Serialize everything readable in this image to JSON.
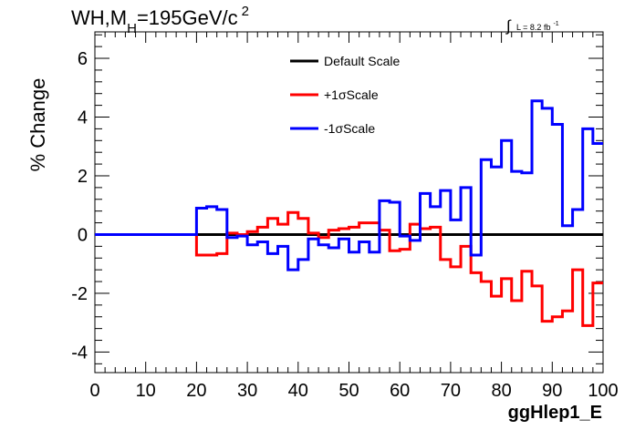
{
  "chart_data": {
    "type": "line",
    "title": {
      "main": "WH,M",
      "subscript": "H",
      "rest": "=195GeV/c",
      "superscript": "2"
    },
    "luminosity": {
      "integral_symbol": "∫",
      "label": "L = 8.2 fb",
      "exponent": "-1"
    },
    "xlabel": "ggHlep1_E",
    "ylabel": "% Change",
    "xlim": [
      0,
      100
    ],
    "ylim": [
      -4.7,
      6.9
    ],
    "x_ticks": [
      0,
      10,
      20,
      30,
      40,
      50,
      60,
      70,
      80,
      90,
      100
    ],
    "y_ticks": [
      -4,
      -2,
      0,
      2,
      4,
      6
    ],
    "legend": {
      "position": "top-center",
      "entries": [
        {
          "label": "Default Scale",
          "color": "#000000"
        },
        {
          "label": "+1σScale",
          "color": "#ff0000"
        },
        {
          "label": "-1σScale",
          "color": "#0000ff"
        }
      ]
    },
    "bin_edges": [
      0,
      2,
      4,
      6,
      8,
      10,
      12,
      14,
      16,
      18,
      20,
      22,
      24,
      26,
      28,
      30,
      32,
      34,
      36,
      38,
      40,
      42,
      44,
      46,
      48,
      50,
      52,
      54,
      56,
      58,
      60,
      62,
      64,
      66,
      68,
      70,
      72,
      74,
      76,
      78,
      80,
      82,
      84,
      86,
      88,
      90,
      92,
      94,
      96,
      98,
      100
    ],
    "series": [
      {
        "name": "Default Scale",
        "color": "#000000",
        "values": [
          0,
          0,
          0,
          0,
          0,
          0,
          0,
          0,
          0,
          0,
          0,
          0,
          0,
          0,
          0,
          0,
          0,
          0,
          0,
          0,
          0,
          0,
          0,
          0,
          0,
          0,
          0,
          0,
          0,
          0,
          0,
          0,
          0,
          0,
          0,
          0,
          0,
          0,
          0,
          0,
          0,
          0,
          0,
          0,
          0,
          0,
          0,
          0,
          0,
          0
        ]
      },
      {
        "name": "+1σScale",
        "color": "#ff0000",
        "values": [
          0,
          0,
          0,
          0,
          0,
          0,
          0,
          0,
          0,
          0,
          -0.7,
          -0.7,
          -0.65,
          0.05,
          0,
          0.1,
          0.25,
          0.55,
          0.35,
          0.75,
          0.55,
          0.05,
          -0.1,
          0.15,
          0.2,
          0.25,
          0.4,
          0.4,
          0.15,
          -0.55,
          -0.5,
          0.35,
          0.2,
          0.25,
          -0.85,
          -1.1,
          -0.4,
          -1.3,
          -1.6,
          -2.1,
          -1.5,
          -2.25,
          -1.25,
          -1.75,
          -2.95,
          -2.8,
          -2.6,
          -1.2,
          -3.1,
          -1.65
        ]
      },
      {
        "name": "-1σScale",
        "color": "#0000ff",
        "values": [
          0,
          0,
          0,
          0,
          0,
          0,
          0,
          0,
          0,
          0,
          0.9,
          0.95,
          0.85,
          -0.1,
          -0.05,
          -0.35,
          -0.25,
          -0.65,
          -0.4,
          -1.2,
          -0.85,
          -0.15,
          -0.35,
          -0.45,
          -0.15,
          -0.6,
          -0.25,
          -0.6,
          1.15,
          1.1,
          -0.05,
          -0.2,
          1.4,
          0.95,
          1.5,
          0.5,
          1.6,
          -0.7,
          2.55,
          2.3,
          3.2,
          2.15,
          2.1,
          4.55,
          4.3,
          3.75,
          0.3,
          0.85,
          3.6,
          3.1
        ]
      }
    ]
  }
}
